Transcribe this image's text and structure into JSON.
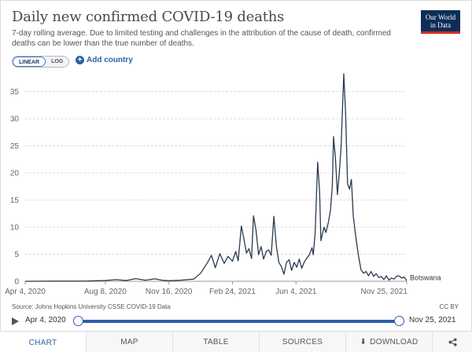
{
  "header": {
    "title": "Daily new confirmed COVID-19 deaths",
    "subtitle": "7-day rolling average. Due to limited testing and challenges in the attribution of the cause of death, confirmed deaths can be lower than the true number of deaths.",
    "logo_line1": "Our World",
    "logo_line2": "in Data"
  },
  "controls": {
    "linear_label": "LINEAR",
    "log_label": "LOG",
    "add_country_label": "Add country",
    "selected_scale": "linear"
  },
  "footer": {
    "source": "Source: Johns Hopkins University CSSE COVID-19 Data",
    "license": "CC BY"
  },
  "timeline": {
    "start_label": "Apr 4, 2020",
    "end_label": "Nov 25, 2021"
  },
  "tabs": [
    {
      "label": "CHART",
      "active": true
    },
    {
      "label": "MAP",
      "active": false
    },
    {
      "label": "TABLE",
      "active": false
    },
    {
      "label": "SOURCES",
      "active": false
    },
    {
      "label": "DOWNLOAD",
      "active": false
    },
    {
      "label": "",
      "active": false
    }
  ],
  "colors": {
    "line": "#2b3a4d",
    "accent": "#2e5fa8",
    "grid": "#dddddd"
  },
  "chart_data": {
    "type": "line",
    "title": "Daily new confirmed COVID-19 deaths",
    "xlabel": "",
    "ylabel": "",
    "ylim": [
      0,
      38
    ],
    "yticks": [
      0,
      5,
      10,
      15,
      20,
      25,
      30,
      35
    ],
    "xtick_labels": [
      {
        "date": "2020-04-04",
        "label": "Apr 4, 2020"
      },
      {
        "date": "2020-08-08",
        "label": "Aug 8, 2020"
      },
      {
        "date": "2020-11-16",
        "label": "Nov 16, 2020"
      },
      {
        "date": "2021-02-24",
        "label": "Feb 24, 2021"
      },
      {
        "date": "2021-06-04",
        "label": "Jun 4, 2021"
      },
      {
        "date": "2021-11-25",
        "label": "Nov 25, 2021"
      }
    ],
    "grid": true,
    "series": [
      {
        "name": "Botswana",
        "points": [
          [
            "2020-04-04",
            0
          ],
          [
            "2020-05-20",
            0.03
          ],
          [
            "2020-07-10",
            0.05
          ],
          [
            "2020-08-08",
            0.15
          ],
          [
            "2020-08-25",
            0.3
          ],
          [
            "2020-09-10",
            0.15
          ],
          [
            "2020-09-25",
            0.5
          ],
          [
            "2020-10-10",
            0.2
          ],
          [
            "2020-10-25",
            0.45
          ],
          [
            "2020-11-05",
            0.2
          ],
          [
            "2020-11-16",
            0.1
          ],
          [
            "2020-12-05",
            0.2
          ],
          [
            "2020-12-25",
            0.4
          ],
          [
            "2021-01-05",
            1.5
          ],
          [
            "2021-01-15",
            3.3
          ],
          [
            "2021-01-22",
            4.8
          ],
          [
            "2021-01-28",
            2.5
          ],
          [
            "2021-02-04",
            5.1
          ],
          [
            "2021-02-11",
            3.3
          ],
          [
            "2021-02-17",
            4.6
          ],
          [
            "2021-02-24",
            3.7
          ],
          [
            "2021-03-01",
            5.5
          ],
          [
            "2021-03-05",
            3.8
          ],
          [
            "2021-03-10",
            10.2
          ],
          [
            "2021-03-14",
            7.8
          ],
          [
            "2021-03-18",
            5.2
          ],
          [
            "2021-03-22",
            6.0
          ],
          [
            "2021-03-26",
            4.2
          ],
          [
            "2021-03-29",
            12.1
          ],
          [
            "2021-04-02",
            9.5
          ],
          [
            "2021-04-06",
            4.9
          ],
          [
            "2021-04-10",
            6.4
          ],
          [
            "2021-04-14",
            4.1
          ],
          [
            "2021-04-18",
            5.5
          ],
          [
            "2021-04-22",
            5.8
          ],
          [
            "2021-04-26",
            4.8
          ],
          [
            "2021-04-30",
            12.0
          ],
          [
            "2021-05-04",
            6.5
          ],
          [
            "2021-05-08",
            3.5
          ],
          [
            "2021-05-12",
            2.7
          ],
          [
            "2021-05-16",
            1.3
          ],
          [
            "2021-05-20",
            3.5
          ],
          [
            "2021-05-24",
            4.0
          ],
          [
            "2021-05-28",
            2.0
          ],
          [
            "2021-06-01",
            3.5
          ],
          [
            "2021-06-05",
            2.6
          ],
          [
            "2021-06-09",
            4.1
          ],
          [
            "2021-06-13",
            2.4
          ],
          [
            "2021-06-17",
            3.6
          ],
          [
            "2021-06-21",
            4.3
          ],
          [
            "2021-06-25",
            4.9
          ],
          [
            "2021-06-29",
            6.2
          ],
          [
            "2021-07-01",
            4.9
          ],
          [
            "2021-07-04",
            8.9
          ],
          [
            "2021-07-08",
            22.0
          ],
          [
            "2021-07-11",
            16.5
          ],
          [
            "2021-07-13",
            7.5
          ],
          [
            "2021-07-15",
            8.5
          ],
          [
            "2021-07-18",
            10.0
          ],
          [
            "2021-07-21",
            9.0
          ],
          [
            "2021-07-25",
            11.0
          ],
          [
            "2021-07-28",
            13.0
          ],
          [
            "2021-07-31",
            17.5
          ],
          [
            "2021-08-02",
            26.7
          ],
          [
            "2021-08-05",
            22.5
          ],
          [
            "2021-08-08",
            16.0
          ],
          [
            "2021-08-11",
            20.0
          ],
          [
            "2021-08-14",
            25.2
          ],
          [
            "2021-08-16",
            32.0
          ],
          [
            "2021-08-18",
            38.3
          ],
          [
            "2021-08-21",
            30.8
          ],
          [
            "2021-08-24",
            18.0
          ],
          [
            "2021-08-27",
            17.0
          ],
          [
            "2021-08-30",
            18.8
          ],
          [
            "2021-09-02",
            12.0
          ],
          [
            "2021-09-06",
            8.2
          ],
          [
            "2021-09-10",
            4.8
          ],
          [
            "2021-09-14",
            2.2
          ],
          [
            "2021-09-18",
            1.5
          ],
          [
            "2021-09-22",
            1.8
          ],
          [
            "2021-09-26",
            1.0
          ],
          [
            "2021-09-30",
            1.8
          ],
          [
            "2021-10-04",
            0.9
          ],
          [
            "2021-10-08",
            1.4
          ],
          [
            "2021-10-12",
            0.7
          ],
          [
            "2021-10-16",
            0.9
          ],
          [
            "2021-10-20",
            0.3
          ],
          [
            "2021-10-24",
            1.0
          ],
          [
            "2021-10-28",
            0.2
          ],
          [
            "2021-11-01",
            0.6
          ],
          [
            "2021-11-05",
            0.4
          ],
          [
            "2021-11-10",
            1.0
          ],
          [
            "2021-11-14",
            0.9
          ],
          [
            "2021-11-18",
            0.6
          ],
          [
            "2021-11-21",
            0.8
          ],
          [
            "2021-11-25",
            0.1
          ]
        ]
      }
    ]
  }
}
